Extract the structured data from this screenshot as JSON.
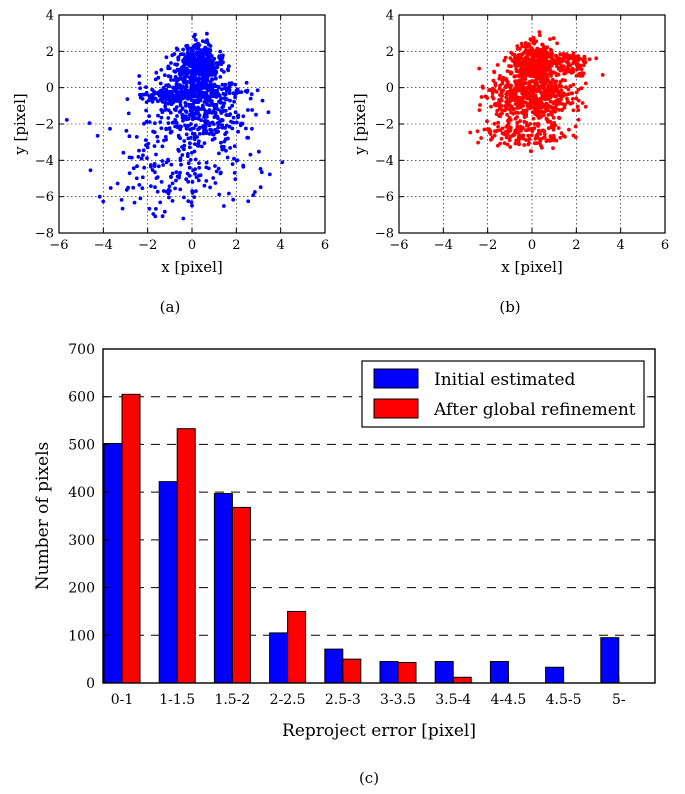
{
  "chart_data": [
    {
      "id": "a",
      "type": "scatter",
      "caption": "(a)",
      "xlabel": "x [pixel]",
      "ylabel": "y [pixel]",
      "xlim": [
        -6,
        6
      ],
      "ylim": [
        -8,
        4
      ],
      "xticks": [
        -6,
        -4,
        -2,
        0,
        2,
        4,
        6
      ],
      "yticks": [
        -8,
        -6,
        -4,
        -2,
        0,
        2,
        4
      ],
      "xtick_labels": [
        "−6",
        "−4",
        "−2",
        "0",
        "2",
        "4",
        "6"
      ],
      "ytick_labels": [
        "−8",
        "−6",
        "−4",
        "−2",
        "0",
        "2",
        "4"
      ],
      "grid": true,
      "color": "#0000ff",
      "clusters": [
        {
          "cx": 0.2,
          "cy": 1.3,
          "sx": 0.55,
          "sy": 0.55,
          "n": 420
        },
        {
          "cx": 0.4,
          "cy": -0.3,
          "sx": 0.9,
          "sy": 0.55,
          "n": 300
        },
        {
          "cx": -1.0,
          "cy": -0.5,
          "sx": 0.6,
          "sy": 0.25,
          "n": 120
        },
        {
          "cx": 0.2,
          "cy": -1.8,
          "sx": 1.1,
          "sy": 0.6,
          "n": 170
        },
        {
          "cx": -0.4,
          "cy": -4.0,
          "sx": 1.8,
          "sy": 1.6,
          "n": 230
        }
      ]
    },
    {
      "id": "b",
      "type": "scatter",
      "caption": "(b)",
      "xlabel": "x [pixel]",
      "ylabel": "y [pixel]",
      "xlim": [
        -6,
        6
      ],
      "ylim": [
        -8,
        4
      ],
      "xticks": [
        -6,
        -4,
        -2,
        0,
        2,
        4,
        6
      ],
      "yticks": [
        -8,
        -6,
        -4,
        -2,
        0,
        2,
        4
      ],
      "xtick_labels": [
        "−6",
        "−4",
        "−2",
        "0",
        "2",
        "4",
        "6"
      ],
      "ytick_labels": [
        "−8",
        "−6",
        "−4",
        "−2",
        "0",
        "2",
        "4"
      ],
      "grid": true,
      "color": "#ff0000",
      "clusters": [
        {
          "cx": 0.1,
          "cy": 1.4,
          "sx": 0.55,
          "sy": 0.5,
          "n": 380
        },
        {
          "cx": 0.0,
          "cy": -0.4,
          "sx": 0.95,
          "sy": 0.7,
          "n": 560
        },
        {
          "cx": 1.8,
          "cy": 1.3,
          "sx": 0.45,
          "sy": 0.35,
          "n": 90
        },
        {
          "cx": -0.3,
          "cy": -2.6,
          "sx": 0.9,
          "sy": 0.45,
          "n": 150
        }
      ]
    },
    {
      "id": "c",
      "type": "bar",
      "caption": "(c)",
      "xlabel": "Reproject error [pixel]",
      "ylabel": "Number of pixels",
      "categories": [
        "0-1",
        "1-1.5",
        "1.5-2",
        "2-2.5",
        "2.5-3",
        "3-3.5",
        "3.5-4",
        "4-4.5",
        "4.5-5",
        "5-"
      ],
      "series": [
        {
          "name": "Initial estimated",
          "color": "#0000ff",
          "values": [
            502,
            422,
            397,
            105,
            71,
            45,
            45,
            45,
            33,
            95
          ]
        },
        {
          "name": "After global refinement",
          "color": "#ff0000",
          "values": [
            605,
            533,
            368,
            150,
            50,
            43,
            12,
            0,
            0,
            0
          ]
        }
      ],
      "ylim": [
        0,
        700
      ],
      "yticks": [
        0,
        100,
        200,
        300,
        400,
        500,
        600,
        700
      ],
      "grid": "horizontal-dashed",
      "legend_position": "top-right"
    }
  ]
}
